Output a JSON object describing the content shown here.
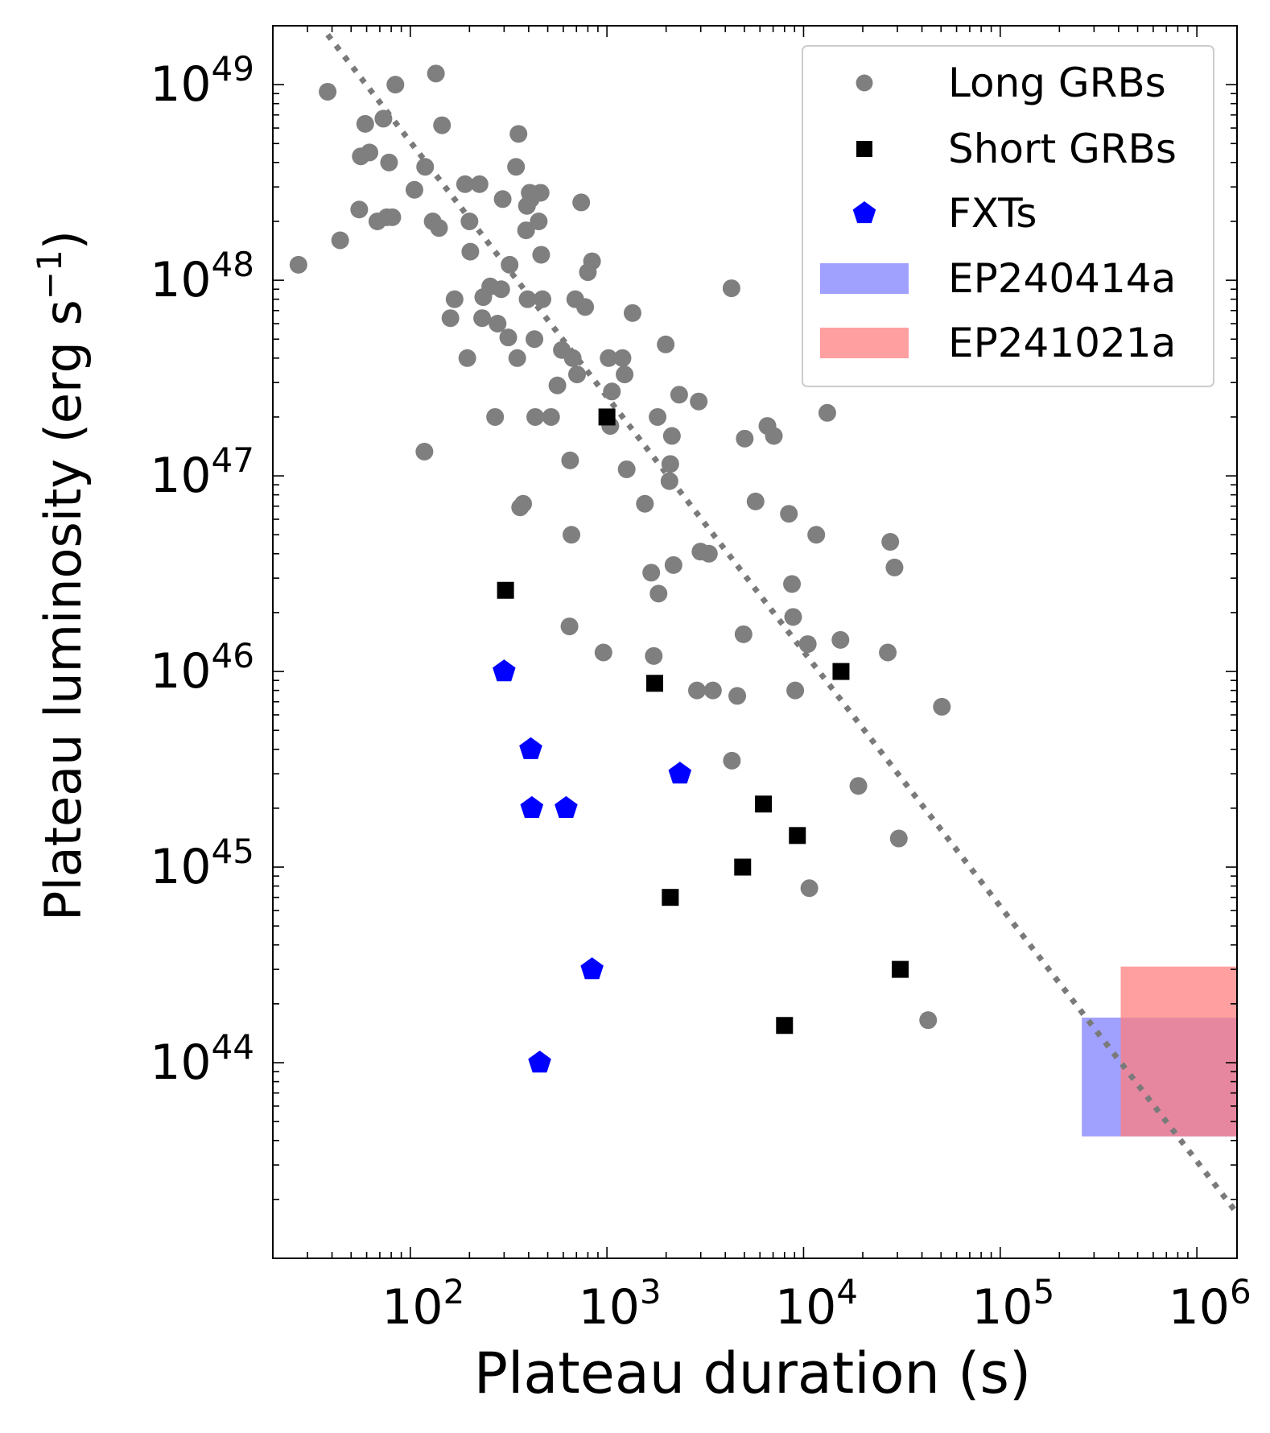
{
  "chart_data": {
    "type": "scatter",
    "xlabel": "Plateau duration (s)",
    "ylabel_prefix": "Plateau luminosity (erg s",
    "ylabel_sup": "−1",
    "ylabel_suffix": ")",
    "x_scale": "log",
    "y_scale": "log",
    "xlim": [
      20,
      1600000
    ],
    "ylim": [
      10000000000000000000000000000000000000000000,
      20000000000000000000000000000000000000000000000000
    ],
    "x_ticks": [
      {
        "value": 100,
        "base": "10",
        "exp": "2"
      },
      {
        "value": 1000,
        "base": "10",
        "exp": "3"
      },
      {
        "value": 10000,
        "base": "10",
        "exp": "4"
      },
      {
        "value": 100000,
        "base": "10",
        "exp": "5"
      },
      {
        "value": 1000000,
        "base": "10",
        "exp": "6"
      }
    ],
    "y_ticks": [
      {
        "value": 100000000000000000000000000000000000000000000,
        "base": "10",
        "exp": "44"
      },
      {
        "value": 1000000000000000000000000000000000000000000000,
        "base": "10",
        "exp": "45"
      },
      {
        "value": 10000000000000000000000000000000000000000000000,
        "base": "10",
        "exp": "46"
      },
      {
        "value": 100000000000000000000000000000000000000000000000,
        "base": "10",
        "exp": "47"
      },
      {
        "value": 1000000000000000000000000000000000000000000000000,
        "base": "10",
        "exp": "48"
      },
      {
        "value": 10000000000000000000000000000000000000000000000000,
        "base": "10",
        "exp": "49"
      }
    ],
    "trend_line": {
      "name": "fit",
      "points": [
        [
          38,
          18000000000000000000000000000000000000000000000000
        ],
        [
          1600000,
          17000000000000000000000000000000000000000000
        ]
      ],
      "style": "dotted",
      "color": "#7a7a7a"
    },
    "series": [
      {
        "name": "Long GRBs",
        "marker": "circle",
        "color": "#7f7f7f",
        "points": [
          [
            27,
            1.2e+48
          ],
          [
            38,
            9.2e+48
          ],
          [
            44,
            1.6e+48
          ],
          [
            55,
            2.3e+48
          ],
          [
            56,
            4.3e+48
          ],
          [
            59,
            6.3e+48
          ],
          [
            62,
            4.5e+48
          ],
          [
            68,
            2e+48
          ],
          [
            73,
            6.7e+48
          ],
          [
            76,
            2.1e+48
          ],
          [
            78,
            4e+48
          ],
          [
            81,
            2.1e+48
          ],
          [
            84,
            1e+49
          ],
          [
            105,
            2.9e+48
          ],
          [
            118,
            1.33e+47
          ],
          [
            119,
            3.8e+48
          ],
          [
            130,
            2e+48
          ],
          [
            135,
            1.14e+49
          ],
          [
            140,
            1.85e+48
          ],
          [
            145,
            6.2e+48
          ],
          [
            160,
            6.4e+47
          ],
          [
            168,
            8e+47
          ],
          [
            190,
            3.1e+48
          ],
          [
            195,
            4e+47
          ],
          [
            200,
            2e+48
          ],
          [
            202,
            1.4e+48
          ],
          [
            225,
            3.1e+48
          ],
          [
            235,
            8.2e+47
          ],
          [
            232,
            6.4e+47
          ],
          [
            255,
            9.3e+47
          ],
          [
            270,
            2e+47
          ],
          [
            278,
            6e+47
          ],
          [
            290,
            9e+47
          ],
          [
            295,
            2.6e+48
          ],
          [
            315,
            5.1e+47
          ],
          [
            320,
            1.2e+48
          ],
          [
            345,
            3.8e+48
          ],
          [
            350,
            4e+47
          ],
          [
            355,
            5.6e+48
          ],
          [
            362,
            6.9e+46
          ],
          [
            375,
            7.2e+46
          ],
          [
            388,
            1.8e+48
          ],
          [
            392,
            2.4e+48
          ],
          [
            395,
            8e+47
          ],
          [
            405,
            2.8e+48
          ],
          [
            410,
            2.6e+48
          ],
          [
            428,
            5e+47
          ],
          [
            432,
            2e+47
          ],
          [
            450,
            2e+48
          ],
          [
            460,
            2.8e+48
          ],
          [
            463,
            1.35e+48
          ],
          [
            470,
            8e+47
          ],
          [
            520,
            2e+47
          ],
          [
            560,
            2.9e+47
          ],
          [
            590,
            4.4e+47
          ],
          [
            645,
            1.7e+46
          ],
          [
            650,
            1.2e+47
          ],
          [
            660,
            5e+46
          ],
          [
            670,
            4e+47
          ],
          [
            690,
            8e+47
          ],
          [
            705,
            3.3e+47
          ],
          [
            740,
            2.5e+48
          ],
          [
            775,
            7.3e+47
          ],
          [
            800,
            1.1e+48
          ],
          [
            840,
            1.25e+48
          ],
          [
            960,
            1.25e+46
          ],
          [
            1020,
            4e+47
          ],
          [
            1040,
            1.8e+47
          ],
          [
            1060,
            2.7e+47
          ],
          [
            1200,
            4e+47
          ],
          [
            1230,
            3.3e+47
          ],
          [
            1260,
            1.08e+47
          ],
          [
            1350,
            6.8e+47
          ],
          [
            1560,
            7.2e+46
          ],
          [
            1680,
            3.2e+46
          ],
          [
            1730,
            1.2e+46
          ],
          [
            1810,
            2e+47
          ],
          [
            1830,
            2.5e+46
          ],
          [
            1990,
            4.7e+47
          ],
          [
            2080,
            9.4e+46
          ],
          [
            2100,
            1.15e+47
          ],
          [
            2140,
            1.6e+47
          ],
          [
            2180,
            3.5e+46
          ],
          [
            2330,
            2.6e+47
          ],
          [
            2870,
            8e+45
          ],
          [
            2930,
            2.4e+47
          ],
          [
            2990,
            4.1e+46
          ],
          [
            3300,
            4e+46
          ],
          [
            3460,
            8e+45
          ],
          [
            4300,
            9.1e+47
          ],
          [
            4320,
            3.5e+45
          ],
          [
            4600,
            7.5e+45
          ],
          [
            4950,
            1.55e+46
          ],
          [
            5020,
            1.55e+47
          ],
          [
            5700,
            7.4e+46
          ],
          [
            6550,
            1.8e+47
          ],
          [
            7060,
            1.6e+47
          ],
          [
            8420,
            6.4e+46
          ],
          [
            8730,
            2.8e+46
          ],
          [
            8850,
            1.9e+46
          ],
          [
            9070,
            8e+45
          ],
          [
            10500,
            1.38e+46
          ],
          [
            10700,
            7.8e+44
          ],
          [
            11600,
            5e+46
          ],
          [
            13200,
            2.1e+47
          ],
          [
            15400,
            1.45e+46
          ],
          [
            19000,
            2.6e+45
          ],
          [
            26800,
            1.25e+46
          ],
          [
            27600,
            4.6e+46
          ],
          [
            29000,
            3.4e+46
          ],
          [
            30500,
            1.4e+45
          ],
          [
            43000,
            1.65e+44
          ],
          [
            50500,
            6.6e+45
          ]
        ]
      },
      {
        "name": "Short GRBs",
        "marker": "square",
        "color": "#000000",
        "points": [
          [
            305,
            2.6e+46
          ],
          [
            1000,
            2e+47
          ],
          [
            1750,
            8.7e+45
          ],
          [
            2100,
            7e+44
          ],
          [
            4900,
            1e+45
          ],
          [
            6250,
            2.1e+45
          ],
          [
            8000,
            1.55e+44
          ],
          [
            9300,
            1.45e+45
          ],
          [
            15500,
            1e+46
          ],
          [
            31000,
            3e+44
          ]
        ]
      },
      {
        "name": "FXTs",
        "marker": "pentagon",
        "color": "#0000ff",
        "points": [
          [
            300,
            1e+46
          ],
          [
            410,
            4e+45
          ],
          [
            415,
            2e+45
          ],
          [
            455,
            1e+44
          ],
          [
            620,
            2e+45
          ],
          [
            840,
            3e+44
          ],
          [
            2350,
            3e+45
          ]
        ]
      }
    ],
    "regions": [
      {
        "name": "EP240414a",
        "color": "#8080ff",
        "opacity": 0.75,
        "x": [
          260000,
          1600000
        ],
        "y": [
          42000000000000000000000000000000000000000000,
          170000000000000000000000000000000000000000000
        ]
      },
      {
        "name": "EP241021a",
        "color": "#ff7f7f",
        "opacity": 0.75,
        "x": [
          410000,
          1600000
        ],
        "y": [
          42000000000000000000000000000000000000000000,
          310000000000000000000000000000000000000000000
        ]
      }
    ],
    "legend": {
      "position": "top-right",
      "entries": [
        {
          "label": "Long GRBs",
          "marker": "circle",
          "color": "#7f7f7f"
        },
        {
          "label": "Short GRBs",
          "marker": "square",
          "color": "#000000"
        },
        {
          "label": "FXTs",
          "marker": "pentagon",
          "color": "#0000ff"
        },
        {
          "label": "EP240414a",
          "marker": "rect",
          "color": "#8080ff"
        },
        {
          "label": "EP241021a",
          "marker": "rect",
          "color": "#ff7f7f"
        }
      ]
    }
  }
}
